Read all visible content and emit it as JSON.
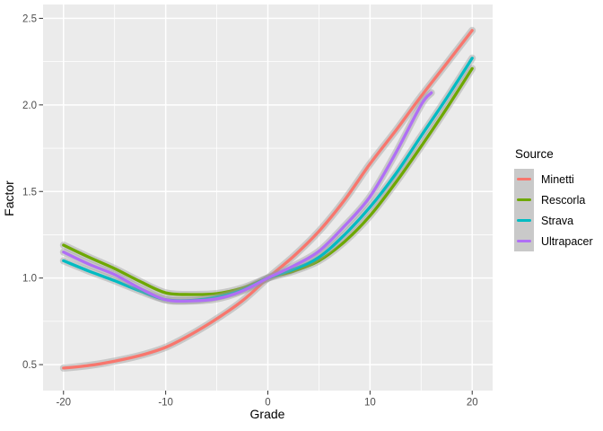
{
  "chart_data": {
    "type": "line",
    "title": "",
    "xlabel": "Grade",
    "ylabel": "Factor",
    "legend_title": "Source",
    "legend_position": "right",
    "grid": true,
    "panel_background": "#EBEBEB",
    "grid_color": "#FFFFFF",
    "tick_color": "#333333",
    "tick_label_color": "#4D4D4D",
    "legend_key_background": "#C9C9C9",
    "ribbon_color": "#999999",
    "xlim": [
      -22,
      22
    ],
    "ylim": [
      0.35,
      2.58
    ],
    "x_tick_values": [
      -20,
      -10,
      0,
      10,
      20
    ],
    "x_tick_labels": [
      "-20",
      "-10",
      "0",
      "10",
      "20"
    ],
    "x_minor_ticks": [
      -15,
      -5,
      5,
      15
    ],
    "y_tick_values": [
      0.5,
      1.0,
      1.5,
      2.0,
      2.5
    ],
    "y_tick_labels": [
      "0.5",
      "1.0",
      "1.5",
      "2.0",
      "2.5"
    ],
    "y_minor_ticks": [
      0.75,
      1.25,
      1.75,
      2.25
    ],
    "series": [
      {
        "name": "Minetti",
        "color": "#F8766D",
        "x": [
          -20,
          -17.5,
          -15,
          -12.5,
          -10,
          -7.5,
          -5,
          -2.5,
          0,
          2.5,
          5,
          7.5,
          10,
          12.5,
          15,
          17.5,
          20
        ],
        "y": [
          0.48,
          0.495,
          0.52,
          0.553,
          0.6,
          0.675,
          0.765,
          0.868,
          1.0,
          1.125,
          1.27,
          1.45,
          1.66,
          1.85,
          2.05,
          2.24,
          2.43
        ]
      },
      {
        "name": "Rescorla",
        "color": "#6EA801",
        "x": [
          -20,
          -17.5,
          -15,
          -12.5,
          -10,
          -7.5,
          -5,
          -2.5,
          0,
          2.5,
          5,
          7.5,
          10,
          12.5,
          15,
          17.5,
          20
        ],
        "y": [
          1.19,
          1.12,
          1.055,
          0.98,
          0.915,
          0.905,
          0.91,
          0.942,
          1.0,
          1.04,
          1.1,
          1.21,
          1.36,
          1.55,
          1.76,
          1.98,
          2.21
        ]
      },
      {
        "name": "Strava",
        "color": "#00BBC2",
        "x": [
          -20,
          -17.5,
          -15,
          -12.5,
          -10,
          -7.5,
          -5,
          -2.5,
          0,
          2.5,
          5,
          7.5,
          10,
          12.5,
          15,
          17.5,
          20
        ],
        "y": [
          1.1,
          1.04,
          0.985,
          0.925,
          0.875,
          0.87,
          0.89,
          0.93,
          1.0,
          1.05,
          1.12,
          1.25,
          1.41,
          1.6,
          1.82,
          2.04,
          2.27
        ]
      },
      {
        "name": "Ultrapacer",
        "color": "#B06FF5",
        "x": [
          -20,
          -17.5,
          -15,
          -12.5,
          -10,
          -7.5,
          -5,
          -2.5,
          0,
          2.5,
          5,
          7.5,
          10,
          12.5,
          15,
          16
        ],
        "y": [
          1.15,
          1.08,
          1.02,
          0.94,
          0.875,
          0.868,
          0.88,
          0.925,
          1.0,
          1.07,
          1.155,
          1.3,
          1.47,
          1.72,
          2.0,
          2.07
        ]
      }
    ]
  }
}
